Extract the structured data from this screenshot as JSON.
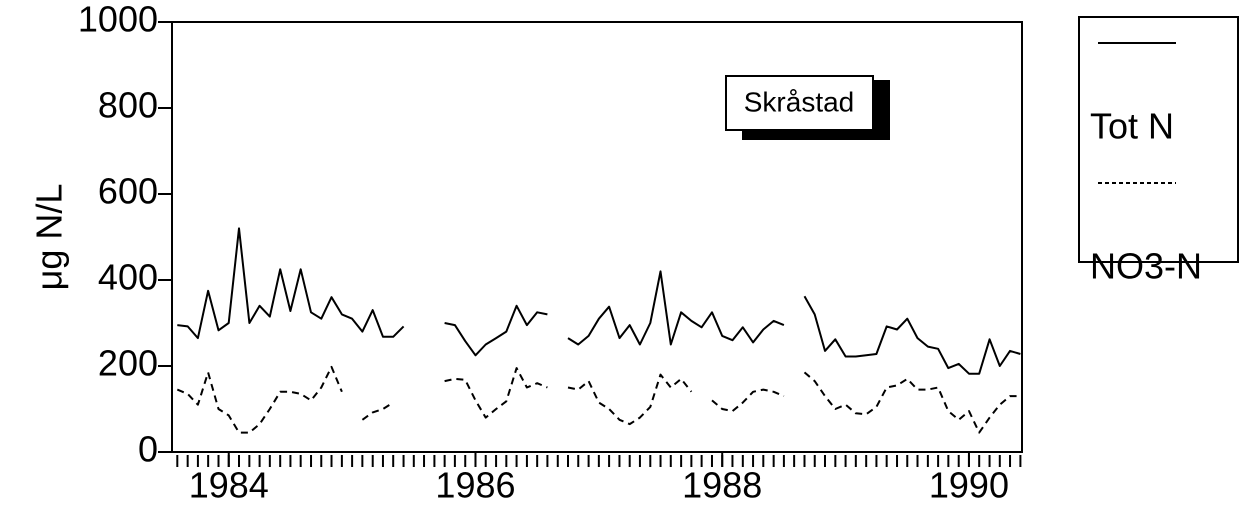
{
  "chart_data": {
    "type": "line",
    "ylabel": "μg N/L",
    "annotation": "Skråstad",
    "x": [
      1983.583,
      1983.667,
      1983.75,
      1983.833,
      1983.917,
      1984,
      1984.083,
      1984.167,
      1984.25,
      1984.333,
      1984.417,
      1984.5,
      1984.583,
      1984.667,
      1984.75,
      1984.833,
      1984.917,
      1985,
      1985.083,
      1985.167,
      1985.25,
      1985.333,
      1985.417,
      1985.5,
      1985.583,
      1985.667,
      1985.75,
      1985.833,
      1985.917,
      1986,
      1986.083,
      1986.167,
      1986.25,
      1986.333,
      1986.417,
      1986.5,
      1986.583,
      1986.667,
      1986.75,
      1986.833,
      1986.917,
      1987,
      1987.083,
      1987.167,
      1987.25,
      1987.333,
      1987.417,
      1987.5,
      1987.583,
      1987.667,
      1987.75,
      1987.833,
      1987.917,
      1988,
      1988.083,
      1988.167,
      1988.25,
      1988.333,
      1988.417,
      1988.5,
      1988.583,
      1988.667,
      1988.75,
      1988.833,
      1988.917,
      1989,
      1989.083,
      1989.167,
      1989.25,
      1989.333,
      1989.417,
      1989.5,
      1989.583,
      1989.667,
      1989.75,
      1989.833,
      1989.917,
      1990,
      1990.083,
      1990.167,
      1990.25,
      1990.333,
      1990.417
    ],
    "series": [
      {
        "name": "Tot N",
        "color": "#000000",
        "dash": false,
        "values": [
          295,
          292,
          265,
          375,
          283,
          300,
          520,
          300,
          340,
          315,
          425,
          328,
          425,
          325,
          310,
          360,
          320,
          310,
          280,
          330,
          268,
          268,
          292,
          null,
          null,
          null,
          300,
          295,
          258,
          225,
          250,
          265,
          280,
          340,
          295,
          325,
          320,
          null,
          265,
          250,
          270,
          310,
          338,
          265,
          295,
          250,
          300,
          420,
          250,
          325,
          305,
          290,
          325,
          270,
          260,
          290,
          255,
          285,
          305,
          295,
          null,
          362,
          320,
          235,
          262,
          222,
          222,
          225,
          228,
          292,
          285,
          310,
          265,
          245,
          240,
          195,
          205,
          182,
          182,
          262,
          200,
          235,
          228
        ]
      },
      {
        "name": "NO3-N",
        "color": "#000000",
        "dash": true,
        "values": [
          145,
          135,
          110,
          185,
          100,
          85,
          45,
          45,
          65,
          100,
          140,
          140,
          135,
          120,
          150,
          198,
          140,
          null,
          75,
          92,
          100,
          115,
          null,
          null,
          null,
          null,
          165,
          170,
          168,
          120,
          80,
          100,
          118,
          195,
          150,
          160,
          150,
          null,
          150,
          145,
          165,
          115,
          100,
          75,
          65,
          80,
          105,
          180,
          150,
          170,
          140,
          null,
          120,
          100,
          95,
          115,
          140,
          145,
          140,
          130,
          null,
          185,
          165,
          130,
          100,
          110,
          90,
          88,
          105,
          150,
          155,
          170,
          145,
          145,
          150,
          95,
          75,
          95,
          45,
          80,
          110,
          130,
          130
        ]
      }
    ],
    "xlim": [
      1983.54,
      1990.43
    ],
    "xticks": [
      1984,
      1986,
      1988,
      1990
    ],
    "ylim": [
      0,
      1000
    ],
    "yticks": [
      0,
      200,
      400,
      600,
      800,
      1000
    ]
  }
}
